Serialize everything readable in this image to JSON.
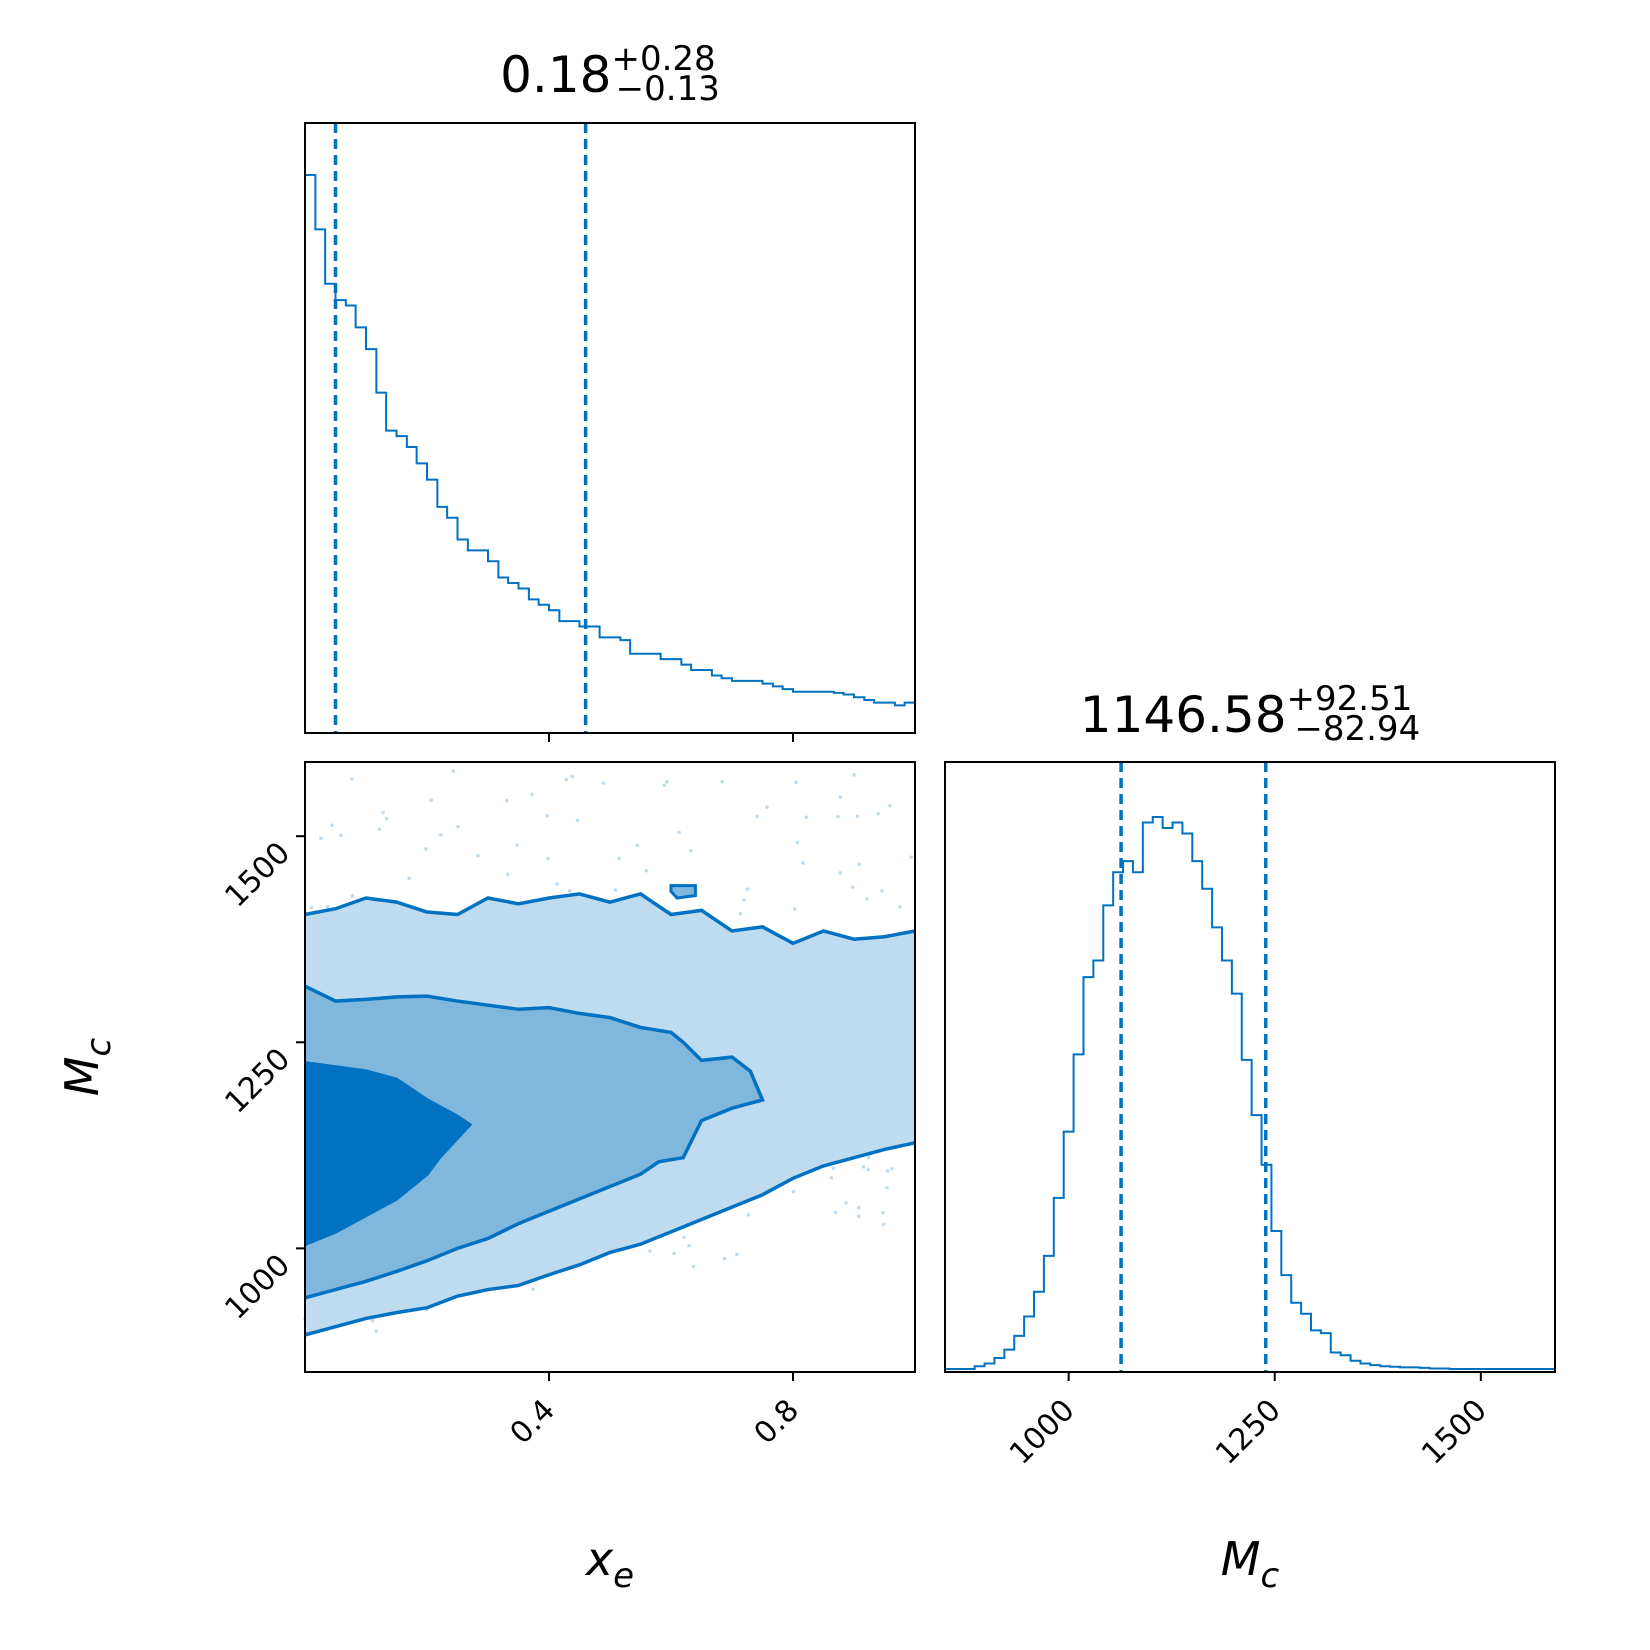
{
  "chart_data": [
    {
      "type": "histogram",
      "panel": "x_e marginal",
      "title_value": "0.18",
      "title_plus": "+0.28",
      "title_minus": "−0.13",
      "xlim": [
        0.0,
        1.0
      ],
      "quantile_lines": [
        0.05,
        0.46
      ],
      "bins": [
        0.0,
        0.017,
        0.033,
        0.05,
        0.067,
        0.083,
        0.1,
        0.117,
        0.133,
        0.15,
        0.167,
        0.183,
        0.2,
        0.217,
        0.233,
        0.25,
        0.267,
        0.283,
        0.3,
        0.317,
        0.333,
        0.35,
        0.367,
        0.383,
        0.4,
        0.417,
        0.433,
        0.45,
        0.467,
        0.483,
        0.5,
        0.517,
        0.533,
        0.55,
        0.567,
        0.583,
        0.6,
        0.617,
        0.633,
        0.65,
        0.667,
        0.683,
        0.7,
        0.717,
        0.733,
        0.75,
        0.767,
        0.783,
        0.8,
        0.817,
        0.833,
        0.85,
        0.867,
        0.883,
        0.9,
        0.917,
        0.933,
        0.95,
        0.967,
        0.983,
        1.0
      ],
      "counts": [
        1.0,
        0.9,
        0.8,
        0.77,
        0.76,
        0.72,
        0.68,
        0.6,
        0.53,
        0.52,
        0.5,
        0.47,
        0.44,
        0.39,
        0.37,
        0.33,
        0.31,
        0.31,
        0.29,
        0.26,
        0.25,
        0.24,
        0.22,
        0.21,
        0.2,
        0.18,
        0.18,
        0.17,
        0.17,
        0.15,
        0.15,
        0.145,
        0.12,
        0.12,
        0.12,
        0.11,
        0.11,
        0.1,
        0.09,
        0.09,
        0.08,
        0.075,
        0.07,
        0.07,
        0.07,
        0.065,
        0.06,
        0.055,
        0.05,
        0.05,
        0.05,
        0.05,
        0.048,
        0.045,
        0.04,
        0.035,
        0.03,
        0.03,
        0.025,
        0.03
      ],
      "color": "#0072c1"
    },
    {
      "type": "contour",
      "panel": "M_c vs x_e",
      "xlim": [
        0.0,
        1.0
      ],
      "ylim": [
        850,
        1590
      ],
      "x_ticks": [
        "0.4",
        "0.8"
      ],
      "x_tick_values": [
        0.4,
        0.8
      ],
      "y_ticks": [
        "1000",
        "1250",
        "1500"
      ],
      "y_tick_values": [
        1000,
        1250,
        1500
      ],
      "xlabel_base": "x",
      "xlabel_sub": "e",
      "ylabel_base": "M",
      "ylabel_sub": "c",
      "colors": {
        "outer": "#bfdbef",
        "middle": "#80b7dd",
        "inner": "#0072c1",
        "line": "#0072c1"
      },
      "outer_upper": [
        [
          0.0,
          1405
        ],
        [
          0.05,
          1412
        ],
        [
          0.1,
          1425
        ],
        [
          0.15,
          1420
        ],
        [
          0.2,
          1408
        ],
        [
          0.25,
          1405
        ],
        [
          0.3,
          1425
        ],
        [
          0.35,
          1418
        ],
        [
          0.4,
          1425
        ],
        [
          0.45,
          1430
        ],
        [
          0.5,
          1420
        ],
        [
          0.55,
          1430
        ],
        [
          0.6,
          1405
        ],
        [
          0.65,
          1410
        ],
        [
          0.7,
          1385
        ],
        [
          0.75,
          1390
        ],
        [
          0.8,
          1370
        ],
        [
          0.85,
          1385
        ],
        [
          0.9,
          1375
        ],
        [
          0.95,
          1378
        ],
        [
          1.0,
          1385
        ]
      ],
      "outer_lower": [
        [
          0.0,
          895
        ],
        [
          0.05,
          905
        ],
        [
          0.1,
          915
        ],
        [
          0.15,
          922
        ],
        [
          0.2,
          928
        ],
        [
          0.25,
          942
        ],
        [
          0.3,
          950
        ],
        [
          0.35,
          955
        ],
        [
          0.4,
          968
        ],
        [
          0.45,
          980
        ],
        [
          0.5,
          995
        ],
        [
          0.55,
          1005
        ],
        [
          0.6,
          1020
        ],
        [
          0.65,
          1035
        ],
        [
          0.7,
          1050
        ],
        [
          0.75,
          1065
        ],
        [
          0.8,
          1085
        ],
        [
          0.85,
          1100
        ],
        [
          0.9,
          1110
        ],
        [
          0.95,
          1120
        ],
        [
          1.0,
          1128
        ]
      ],
      "middle_upper": [
        [
          0.0,
          1318
        ],
        [
          0.05,
          1300
        ],
        [
          0.1,
          1302
        ],
        [
          0.15,
          1305
        ],
        [
          0.2,
          1306
        ],
        [
          0.25,
          1300
        ],
        [
          0.3,
          1295
        ],
        [
          0.35,
          1290
        ],
        [
          0.4,
          1292
        ],
        [
          0.45,
          1285
        ],
        [
          0.5,
          1280
        ],
        [
          0.55,
          1268
        ],
        [
          0.6,
          1262
        ],
        [
          0.62,
          1250
        ],
        [
          0.65,
          1228
        ],
        [
          0.7,
          1232
        ],
        [
          0.73,
          1215
        ],
        [
          0.75,
          1180
        ]
      ],
      "middle_lower": [
        [
          0.75,
          1180
        ],
        [
          0.7,
          1170
        ],
        [
          0.65,
          1155
        ],
        [
          0.62,
          1110
        ],
        [
          0.58,
          1105
        ],
        [
          0.55,
          1090
        ],
        [
          0.5,
          1075
        ],
        [
          0.45,
          1060
        ],
        [
          0.4,
          1045
        ],
        [
          0.35,
          1030
        ],
        [
          0.3,
          1012
        ],
        [
          0.25,
          1000
        ],
        [
          0.2,
          985
        ],
        [
          0.15,
          972
        ],
        [
          0.1,
          960
        ],
        [
          0.05,
          950
        ],
        [
          0.0,
          940
        ]
      ],
      "inner_upper": [
        [
          0.0,
          1225
        ],
        [
          0.05,
          1220
        ],
        [
          0.1,
          1215
        ],
        [
          0.15,
          1205
        ],
        [
          0.2,
          1180
        ],
        [
          0.25,
          1160
        ],
        [
          0.27,
          1150
        ]
      ],
      "inner_lower": [
        [
          0.27,
          1150
        ],
        [
          0.22,
          1110
        ],
        [
          0.2,
          1090
        ],
        [
          0.15,
          1060
        ],
        [
          0.1,
          1040
        ],
        [
          0.05,
          1020
        ],
        [
          0.0,
          1005
        ]
      ],
      "island": [
        [
          0.6,
          1440
        ],
        [
          0.64,
          1440
        ],
        [
          0.64,
          1428
        ],
        [
          0.61,
          1425
        ],
        [
          0.6,
          1433
        ]
      ]
    },
    {
      "type": "histogram",
      "panel": "M_c marginal",
      "title_value": "1146.58",
      "title_plus": "+92.51",
      "title_minus": "−82.94",
      "xlim": [
        850,
        1590
      ],
      "x_ticks": [
        "1000",
        "1250",
        "1500"
      ],
      "x_tick_values": [
        1000,
        1250,
        1500
      ],
      "xlabel_base": "M",
      "xlabel_sub": "c",
      "quantile_lines": [
        1063.6,
        1239.1
      ],
      "bins": [
        850,
        862,
        874,
        886,
        898,
        910,
        922,
        934,
        946,
        958,
        970,
        982,
        994,
        1006,
        1018,
        1030,
        1042,
        1054,
        1066,
        1078,
        1090,
        1102,
        1114,
        1126,
        1138,
        1150,
        1162,
        1174,
        1186,
        1198,
        1210,
        1222,
        1234,
        1246,
        1258,
        1270,
        1282,
        1294,
        1306,
        1318,
        1330,
        1342,
        1354,
        1366,
        1378,
        1390,
        1402,
        1414,
        1426,
        1438,
        1450,
        1462,
        1474,
        1486,
        1498,
        1510,
        1522,
        1534,
        1546,
        1558,
        1570,
        1582,
        1590
      ],
      "counts": [
        0.0,
        0.0,
        0.0,
        0.005,
        0.01,
        0.02,
        0.035,
        0.06,
        0.095,
        0.14,
        0.205,
        0.31,
        0.43,
        0.57,
        0.71,
        0.74,
        0.84,
        0.9,
        0.92,
        0.9,
        0.99,
        1.0,
        0.98,
        0.99,
        0.97,
        0.92,
        0.87,
        0.8,
        0.74,
        0.68,
        0.56,
        0.46,
        0.37,
        0.25,
        0.17,
        0.12,
        0.1,
        0.07,
        0.065,
        0.03,
        0.025,
        0.015,
        0.01,
        0.007,
        0.005,
        0.004,
        0.003,
        0.003,
        0.002,
        0.001,
        0.001,
        0.0,
        0.0,
        0.0,
        0.0,
        0.0,
        0.0,
        0.0,
        0.0,
        0.0,
        0.0,
        0.0
      ],
      "color": "#0072c1"
    }
  ]
}
